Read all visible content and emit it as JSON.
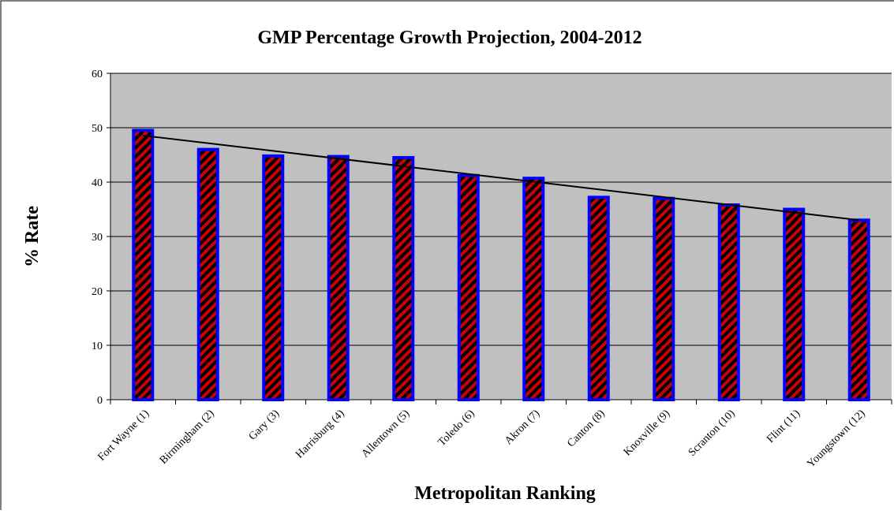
{
  "chart_data": {
    "type": "bar",
    "title": "GMP Percentage Growth Projection, 2004-2012",
    "x_label": "Metropolitan Ranking",
    "y_label": "% Rate",
    "categories": [
      "Fort Wayne (1)",
      "Birmingham (2)",
      "Gary (3)",
      "Harrisburg (4)",
      "Allentown (5)",
      "Toledo (6)",
      "Akron (7)",
      "Canton (8)",
      "Knoxville (9)",
      "Scranton (10)",
      "Flint (11)",
      "Youngstown (12)"
    ],
    "values": [
      49.5,
      46,
      44.8,
      44.7,
      44.5,
      41.2,
      40.7,
      37.2,
      37,
      35.8,
      35,
      33
    ],
    "color": "#cc0000",
    "border_color": "#0000ff",
    "trendline": "linear",
    "ylim": [
      0,
      60
    ],
    "yticks": [
      0,
      10,
      20,
      30,
      40,
      50,
      60
    ],
    "grid": true
  }
}
